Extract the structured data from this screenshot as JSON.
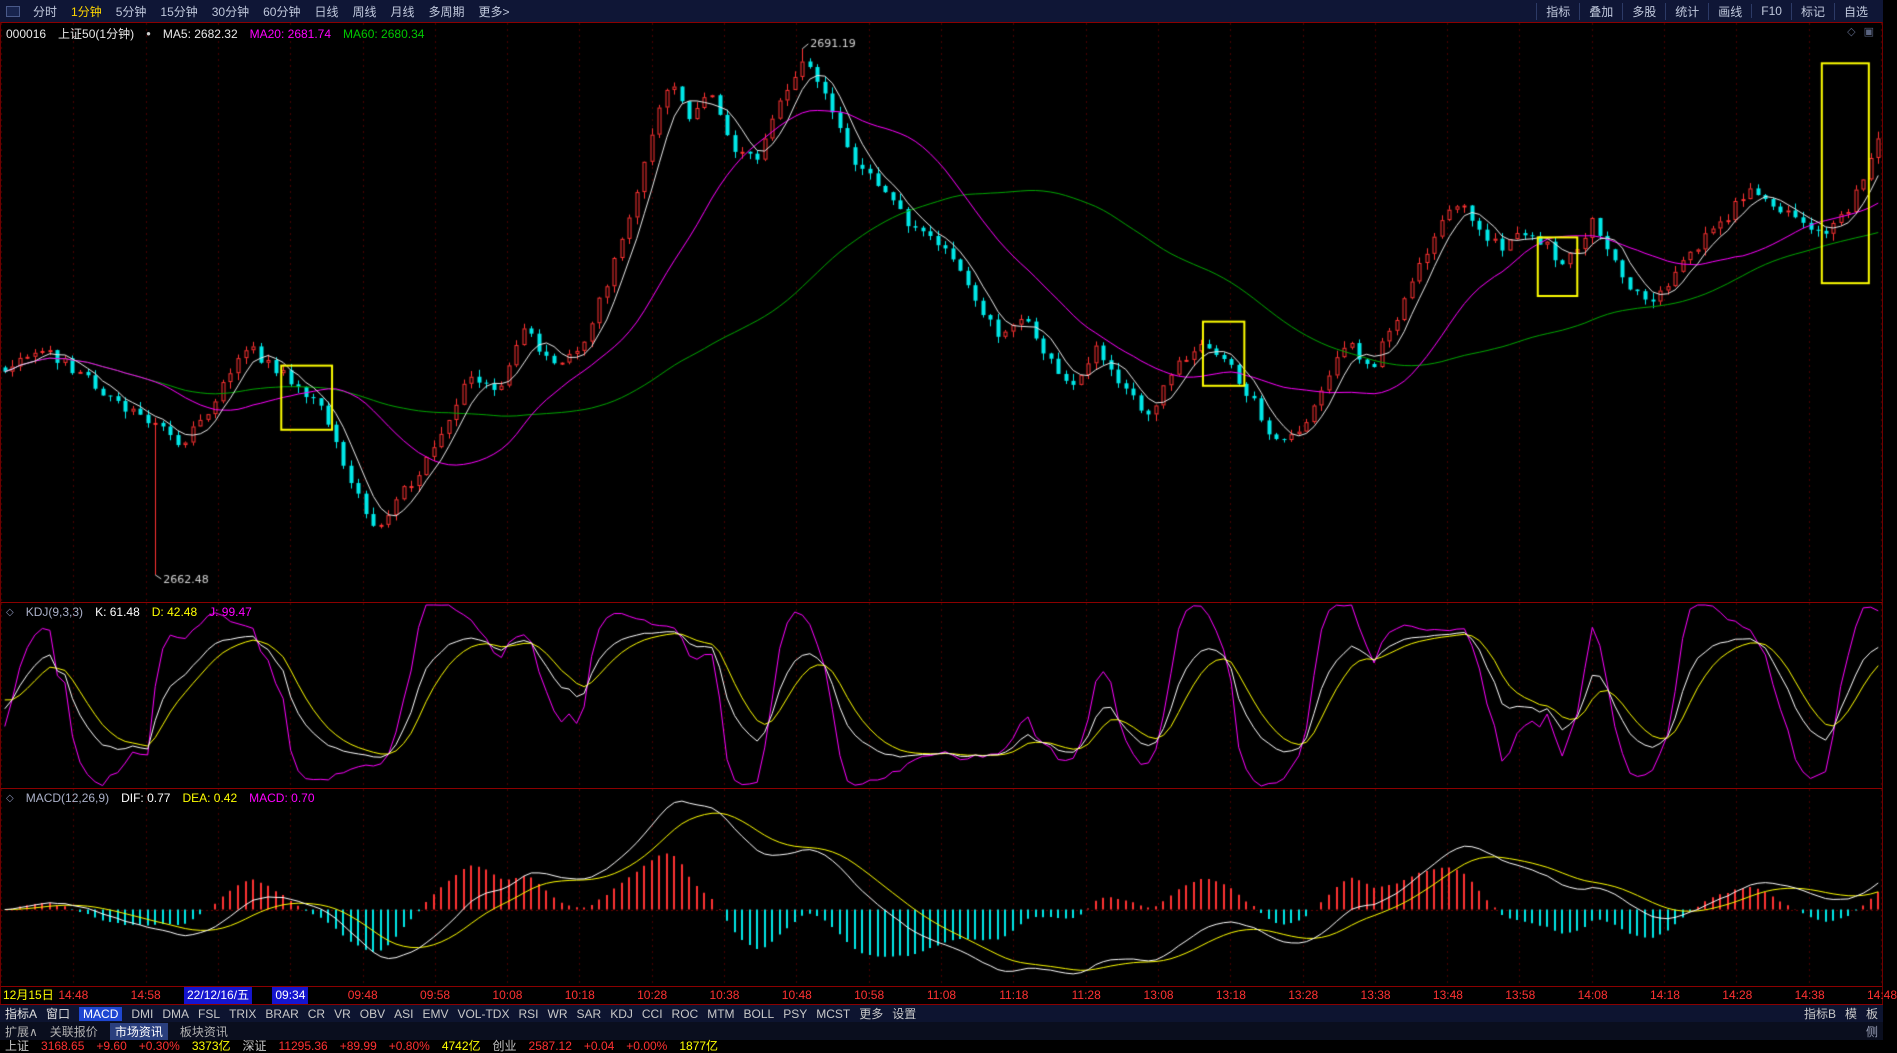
{
  "menu_bar": {
    "left": [
      {
        "label": "分时",
        "active": false
      },
      {
        "label": "1分钟",
        "active": true
      },
      {
        "label": "5分钟",
        "active": false
      },
      {
        "label": "15分钟",
        "active": false
      },
      {
        "label": "30分钟",
        "active": false
      },
      {
        "label": "60分钟",
        "active": false
      },
      {
        "label": "日线",
        "active": false
      },
      {
        "label": "周线",
        "active": false
      },
      {
        "label": "月线",
        "active": false
      },
      {
        "label": "多周期",
        "active": false
      },
      {
        "label": "更多>",
        "active": false
      }
    ],
    "right": [
      "指标",
      "叠加",
      "多股",
      "统计",
      "画线",
      "F10",
      "标记",
      "自选"
    ]
  },
  "main_chart": {
    "symbol": "000016",
    "name": "上证50(1分钟)",
    "ma5_label": "MA5: 2682.32",
    "ma20_label": "MA20: 2681.74",
    "ma60_label": "MA60: 2680.34"
  },
  "kdj_panel": {
    "title": "KDJ(9,3,3)",
    "k_label": "K: 61.48",
    "d_label": "D: 42.48",
    "j_label": "J: 99.47"
  },
  "macd_panel": {
    "title": "MACD(12,26,9)",
    "dif_label": "DIF: 0.77",
    "dea_label": "DEA: 0.42",
    "macd_label": "MACD: 0.70"
  },
  "time_axis": {
    "labels": [
      {
        "text": "12月15日",
        "style": "date"
      },
      {
        "text": "14:48"
      },
      {
        "text": "14:58"
      },
      {
        "text": "22/12/16/五",
        "style": "hl"
      },
      {
        "text": "09:34",
        "style": "hl"
      },
      {
        "text": "09:48"
      },
      {
        "text": "09:58"
      },
      {
        "text": "10:08"
      },
      {
        "text": "10:18"
      },
      {
        "text": "10:28"
      },
      {
        "text": "10:38"
      },
      {
        "text": "10:48"
      },
      {
        "text": "10:58"
      },
      {
        "text": "11:08"
      },
      {
        "text": "11:18"
      },
      {
        "text": "11:28"
      },
      {
        "text": "13:08"
      },
      {
        "text": "13:18"
      },
      {
        "text": "13:28"
      },
      {
        "text": "13:38"
      },
      {
        "text": "13:48"
      },
      {
        "text": "13:58"
      },
      {
        "text": "14:08"
      },
      {
        "text": "14:18"
      },
      {
        "text": "14:28"
      },
      {
        "text": "14:38"
      },
      {
        "text": "14:48"
      }
    ]
  },
  "indicator_bar": {
    "left_labels": [
      "指标A",
      "窗口"
    ],
    "items": [
      {
        "label": "MACD",
        "active": true
      },
      {
        "label": "DMI"
      },
      {
        "label": "DMA"
      },
      {
        "label": "FSL"
      },
      {
        "label": "TRIX"
      },
      {
        "label": "BRAR"
      },
      {
        "label": "CR"
      },
      {
        "label": "VR"
      },
      {
        "label": "OBV"
      },
      {
        "label": "ASI"
      },
      {
        "label": "EMV"
      },
      {
        "label": "VOL-TDX"
      },
      {
        "label": "RSI"
      },
      {
        "label": "WR"
      },
      {
        "label": "SAR"
      },
      {
        "label": "KDJ"
      },
      {
        "label": "CCI"
      },
      {
        "label": "ROC"
      },
      {
        "label": "MTM"
      },
      {
        "label": "BOLL"
      },
      {
        "label": "PSY"
      },
      {
        "label": "MCST"
      },
      {
        "label": "更多"
      }
    ],
    "settings": "设置",
    "right_items": [
      "指标B",
      "模",
      "板"
    ]
  },
  "tabs": {
    "items": [
      {
        "label": "扩展∧",
        "active": false
      },
      {
        "label": "关联报价",
        "active": false
      },
      {
        "label": "市场资讯",
        "active": true
      },
      {
        "label": "板块资讯",
        "active": false
      }
    ],
    "right": "侧"
  },
  "status_ticker": {
    "segments": [
      {
        "t": "上证",
        "c": "#c8c8c8"
      },
      {
        "t": "3168.65",
        "c": "#ff3232"
      },
      {
        "t": "+9.60",
        "c": "#ff3232"
      },
      {
        "t": "+0.30%",
        "c": "#ff3232"
      },
      {
        "t": "3373亿",
        "c": "#ffff00"
      },
      {
        "t": "深证",
        "c": "#c8c8c8"
      },
      {
        "t": "11295.36",
        "c": "#ff3232"
      },
      {
        "t": "+89.99",
        "c": "#ff3232"
      },
      {
        "t": "+0.80%",
        "c": "#ff3232"
      },
      {
        "t": "4742亿",
        "c": "#ffff00"
      },
      {
        "t": "创业",
        "c": "#c8c8c8"
      },
      {
        "t": "2587.12",
        "c": "#ff3232"
      },
      {
        "t": "+0.04",
        "c": "#ff3232"
      },
      {
        "t": "+0.00%",
        "c": "#ff3232"
      },
      {
        "t": "1877亿",
        "c": "#ffff00"
      }
    ]
  },
  "chart_data": {
    "type": "candlestick",
    "panels": [
      "price+MA(5,20,60)",
      "KDJ(9,3,3)",
      "MACD(12,26,9)"
    ],
    "title": "000016 上证50 1分钟K线",
    "n_candles": 250,
    "ylim": [
      2661.0,
      2692.6
    ],
    "last_close": 2686.3,
    "high_annotation": {
      "xfrac": 0.427,
      "value": 2691.19,
      "label": "2691.19"
    },
    "low_annotation": {
      "xfrac": 0.08,
      "value": 2662.48,
      "label": "2662.48"
    },
    "ma_periods": [
      5,
      20,
      60
    ],
    "ma_last": {
      "ma5": 2682.32,
      "ma20": 2681.74,
      "ma60": 2680.34
    },
    "kdj": {
      "params": [
        9,
        3,
        3
      ],
      "last": {
        "k": 61.48,
        "d": 42.48,
        "j": 99.47
      },
      "range": [
        -20,
        120
      ]
    },
    "macd": {
      "params": [
        12,
        26,
        9
      ],
      "last": {
        "dif": 0.77,
        "dea": 0.42,
        "macd": 0.7
      }
    },
    "gridline_count": 27,
    "noise_amp": 0.32,
    "wick_amp": 0.38,
    "seed": 20221216,
    "price_waypoints": [
      [
        0.0,
        2673.8
      ],
      [
        0.022,
        2674.8
      ],
      [
        0.045,
        2673.0
      ],
      [
        0.062,
        2671.8
      ],
      [
        0.08,
        2670.6
      ],
      [
        0.095,
        2669.6
      ],
      [
        0.108,
        2671.2
      ],
      [
        0.128,
        2675.0
      ],
      [
        0.143,
        2673.8
      ],
      [
        0.158,
        2672.6
      ],
      [
        0.168,
        2671.6
      ],
      [
        0.18,
        2668.8
      ],
      [
        0.196,
        2664.8
      ],
      [
        0.208,
        2666.4
      ],
      [
        0.224,
        2668.6
      ],
      [
        0.248,
        2673.4
      ],
      [
        0.262,
        2672.2
      ],
      [
        0.278,
        2676.2
      ],
      [
        0.292,
        2673.8
      ],
      [
        0.308,
        2675.2
      ],
      [
        0.328,
        2680.2
      ],
      [
        0.343,
        2685.8
      ],
      [
        0.356,
        2689.8
      ],
      [
        0.366,
        2687.2
      ],
      [
        0.377,
        2688.8
      ],
      [
        0.388,
        2686.0
      ],
      [
        0.4,
        2685.0
      ],
      [
        0.412,
        2688.2
      ],
      [
        0.427,
        2690.9
      ],
      [
        0.438,
        2688.4
      ],
      [
        0.452,
        2685.4
      ],
      [
        0.468,
        2683.4
      ],
      [
        0.486,
        2681.2
      ],
      [
        0.502,
        2680.4
      ],
      [
        0.518,
        2677.2
      ],
      [
        0.532,
        2675.4
      ],
      [
        0.544,
        2676.8
      ],
      [
        0.556,
        2674.2
      ],
      [
        0.57,
        2673.0
      ],
      [
        0.582,
        2674.8
      ],
      [
        0.596,
        2672.8
      ],
      [
        0.61,
        2671.0
      ],
      [
        0.624,
        2674.0
      ],
      [
        0.642,
        2675.2
      ],
      [
        0.655,
        2673.6
      ],
      [
        0.668,
        2671.6
      ],
      [
        0.681,
        2669.4
      ],
      [
        0.694,
        2670.6
      ],
      [
        0.716,
        2675.4
      ],
      [
        0.729,
        2673.6
      ],
      [
        0.747,
        2677.6
      ],
      [
        0.761,
        2680.6
      ],
      [
        0.774,
        2683.0
      ],
      [
        0.788,
        2681.2
      ],
      [
        0.8,
        2680.2
      ],
      [
        0.811,
        2681.2
      ],
      [
        0.822,
        2680.6
      ],
      [
        0.832,
        2679.2
      ],
      [
        0.847,
        2681.8
      ],
      [
        0.864,
        2678.6
      ],
      [
        0.879,
        2677.4
      ],
      [
        0.894,
        2679.2
      ],
      [
        0.907,
        2680.8
      ],
      [
        0.919,
        2681.8
      ],
      [
        0.931,
        2683.8
      ],
      [
        0.944,
        2682.6
      ],
      [
        0.957,
        2682.2
      ],
      [
        0.97,
        2681.0
      ],
      [
        0.984,
        2682.4
      ],
      [
        1.0,
        2686.3
      ]
    ],
    "highlight_boxes": [
      {
        "x0": 0.149,
        "x1": 0.176,
        "p0": 2670.4,
        "p1": 2673.9
      },
      {
        "x0": 0.639,
        "x1": 0.661,
        "p0": 2672.8,
        "p1": 2676.3
      },
      {
        "x0": 0.817,
        "x1": 0.838,
        "p0": 2677.7,
        "p1": 2680.9
      },
      {
        "x0": 0.968,
        "x1": 0.993,
        "p0": 2678.4,
        "p1": 2690.4
      }
    ],
    "colors": {
      "up": "#ff3232",
      "down": "#00e8e8",
      "ma5": "#e8e8e8",
      "ma20": "#ff00ff",
      "ma60": "#00a800",
      "grid": "#4a0000",
      "zero": "#6a0000",
      "k": "#ffffff",
      "d": "#ffff00",
      "j": "#ff00ff",
      "dif": "#ffffff",
      "dea": "#ffff00",
      "bar_up": "#ff3232",
      "bar_down": "#00e8e8",
      "highlight": "#ffff00",
      "annotation": "#d2d2d2"
    }
  }
}
